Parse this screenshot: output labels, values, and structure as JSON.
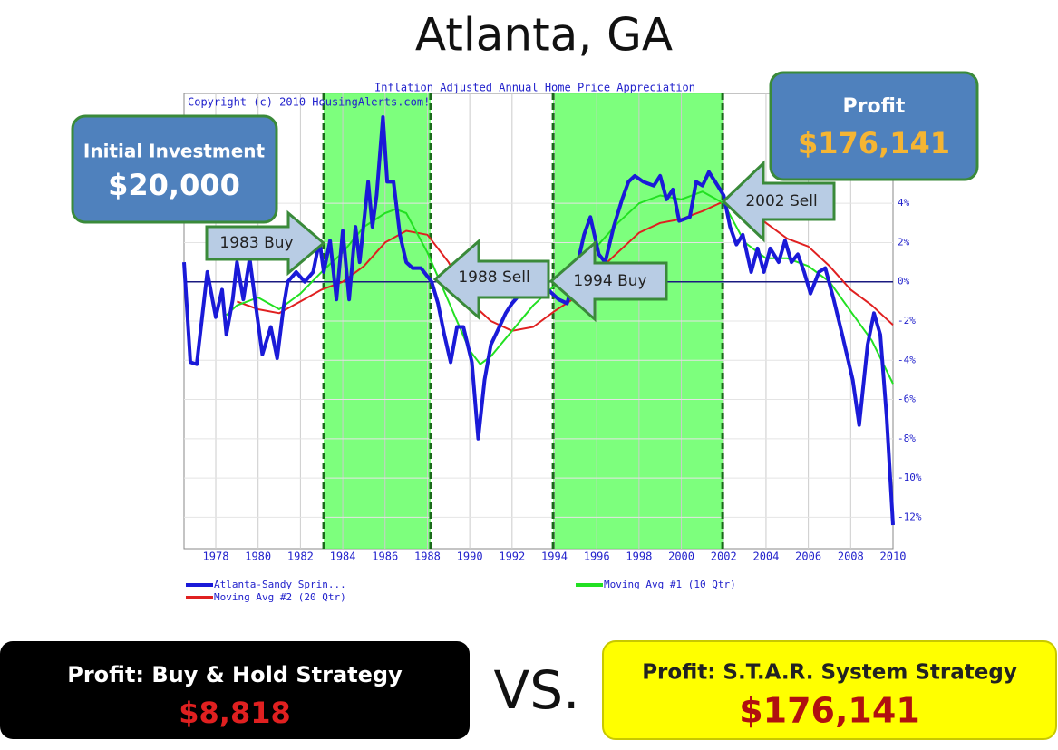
{
  "title": "Atlanta, GA",
  "chart_data": {
    "type": "line",
    "title": "Inflation Adjusted Annual Home Price Appreciation",
    "subtitle": "Copyright (c) 2010 HousingAlerts.com!",
    "xlim": [
      1976.5,
      2010
    ],
    "xticks": [
      1978,
      1980,
      1982,
      1984,
      1986,
      1988,
      1990,
      1992,
      1994,
      1996,
      1998,
      2000,
      2002,
      2004,
      2006,
      2008,
      2010
    ],
    "ylim": [
      -13.6,
      9.6
    ],
    "yticks": [
      {
        "value": 4,
        "label": "4%"
      },
      {
        "value": 2,
        "label": "2%"
      },
      {
        "value": 0,
        "label": "0%"
      },
      {
        "value": -2,
        "label": "-2%"
      },
      {
        "value": -4,
        "label": "-4%"
      },
      {
        "value": -6,
        "label": "-6%"
      },
      {
        "value": -8,
        "label": "-8%"
      },
      {
        "value": -10,
        "label": "-10%"
      },
      {
        "value": -12,
        "label": "-12%"
      }
    ],
    "grid": true,
    "highlights": [
      [
        1983.1,
        1988.15
      ],
      [
        1993.94,
        2001.95
      ]
    ],
    "series": [
      {
        "name": "Atlanta-Sandy Sprin...",
        "color": "#1a1ad8",
        "x": [
          1976.5,
          1976.8,
          1977.1,
          1977.6,
          1978.0,
          1978.3,
          1978.5,
          1978.8,
          1979.0,
          1979.3,
          1979.6,
          1979.9,
          1980.2,
          1980.6,
          1980.9,
          1981.2,
          1981.4,
          1981.8,
          1982.2,
          1982.6,
          1982.9,
          1983.1,
          1983.4,
          1983.7,
          1984.0,
          1984.3,
          1984.6,
          1984.8,
          1985.2,
          1985.4,
          1985.6,
          1985.9,
          1986.1,
          1986.4,
          1986.7,
          1987.0,
          1987.3,
          1987.7,
          1988.2,
          1988.5,
          1988.8,
          1989.1,
          1989.4,
          1989.7,
          1990.1,
          1990.4,
          1990.7,
          1991.0,
          1991.4,
          1991.7,
          1992.0,
          1992.4,
          1992.9,
          1993.3,
          1993.7,
          1994.2,
          1994.6,
          1995.0,
          1995.4,
          1995.7,
          1996.1,
          1996.4,
          1996.8,
          1997.2,
          1997.5,
          1997.8,
          1998.2,
          1998.7,
          1999.0,
          1999.3,
          1999.6,
          1999.9,
          2000.4,
          2000.7,
          2001.0,
          2001.3,
          2001.6,
          2002.0,
          2002.3,
          2002.6,
          2002.9,
          2003.3,
          2003.6,
          2003.9,
          2004.2,
          2004.6,
          2004.9,
          2005.2,
          2005.5,
          2005.8,
          2006.1,
          2006.5,
          2006.8,
          2007.2,
          2007.6,
          2008.1,
          2008.4,
          2008.8,
          2009.1,
          2009.4,
          2009.7,
          2010.0
        ],
        "values": [
          1.0,
          -4.1,
          -4.2,
          0.5,
          -1.8,
          -0.4,
          -2.7,
          -0.9,
          1.0,
          -0.9,
          1.2,
          -1.3,
          -3.7,
          -2.3,
          -3.9,
          -1.3,
          0.0,
          0.5,
          0.0,
          0.5,
          2.1,
          0.5,
          2.1,
          -0.9,
          2.6,
          -0.9,
          2.8,
          1.0,
          5.1,
          2.8,
          4.4,
          8.4,
          5.1,
          5.1,
          2.4,
          1.0,
          0.7,
          0.7,
          0.0,
          -1.1,
          -2.7,
          -4.1,
          -2.3,
          -2.3,
          -4.1,
          -8.0,
          -5.0,
          -3.2,
          -2.3,
          -1.6,
          -1.1,
          -0.6,
          -0.4,
          -0.2,
          -0.4,
          -0.9,
          -1.1,
          0.5,
          2.4,
          3.3,
          1.4,
          1.0,
          2.8,
          4.2,
          5.1,
          5.4,
          5.1,
          4.9,
          5.4,
          4.2,
          4.7,
          3.1,
          3.3,
          5.1,
          4.9,
          5.6,
          5.1,
          4.4,
          2.8,
          1.9,
          2.4,
          0.5,
          1.7,
          0.5,
          1.7,
          1.0,
          2.1,
          1.0,
          1.4,
          0.5,
          -0.6,
          0.5,
          0.7,
          -0.9,
          -2.7,
          -5.0,
          -7.3,
          -3.2,
          -1.6,
          -2.7,
          -6.9,
          -12.4
        ]
      },
      {
        "name": "Moving Avg #1 (10 Qtr)",
        "color": "#22e022",
        "x": [
          1978.5,
          1979,
          1980,
          1981,
          1982,
          1983,
          1984,
          1985,
          1986,
          1986.5,
          1987,
          1988,
          1989,
          1990,
          1990.5,
          1991,
          1992,
          1993,
          1994,
          1995,
          1996,
          1997,
          1998,
          1999,
          2000,
          2001,
          2002,
          2003,
          2004,
          2005,
          2006,
          2007,
          2008,
          2009,
          2010
        ],
        "values": [
          -1.7,
          -1.2,
          -0.8,
          -1.4,
          -0.6,
          0.5,
          1.5,
          2.8,
          3.5,
          3.7,
          3.5,
          1.5,
          -1.0,
          -3.5,
          -4.2,
          -3.8,
          -2.5,
          -1.2,
          -0.2,
          0.8,
          1.8,
          3.0,
          4.0,
          4.4,
          4.2,
          4.6,
          4.0,
          2.0,
          1.2,
          1.2,
          0.8,
          0.0,
          -1.5,
          -3.0,
          -5.2
        ]
      },
      {
        "name": "Moving Avg #2 (20 Qtr)",
        "color": "#e02020",
        "x": [
          1979,
          1980,
          1981,
          1982,
          1983,
          1984,
          1985,
          1986,
          1987,
          1988,
          1989,
          1990,
          1991,
          1992,
          1993,
          1994,
          1995,
          1996,
          1997,
          1998,
          1999,
          2000,
          2001,
          2002,
          2003,
          2004,
          2005,
          2006,
          2007,
          2008,
          2009,
          2010
        ],
        "values": [
          -1.0,
          -1.4,
          -1.6,
          -1.0,
          -0.4,
          0.0,
          0.8,
          2.0,
          2.6,
          2.4,
          1.0,
          -1.0,
          -2.0,
          -2.5,
          -2.3,
          -1.5,
          -0.8,
          0.5,
          1.5,
          2.5,
          3.0,
          3.2,
          3.6,
          4.1,
          3.8,
          3.0,
          2.2,
          1.8,
          0.8,
          -0.4,
          -1.2,
          -2.2
        ]
      }
    ]
  },
  "callouts": {
    "investment_label": "Initial Investment",
    "investment_amount": "$20,000",
    "profit_label": "Profit",
    "profit_amount": "$176,141"
  },
  "arrows": [
    "1983 Buy",
    "1988 Sell",
    "1994 Buy",
    "2002 Sell"
  ],
  "comparison": {
    "left_label": "Profit: Buy & Hold Strategy",
    "left_amount": "$8,818",
    "versus": "VS.",
    "right_label": "Profit: S.T.A.R. System Strategy",
    "right_amount": "$176,141"
  }
}
